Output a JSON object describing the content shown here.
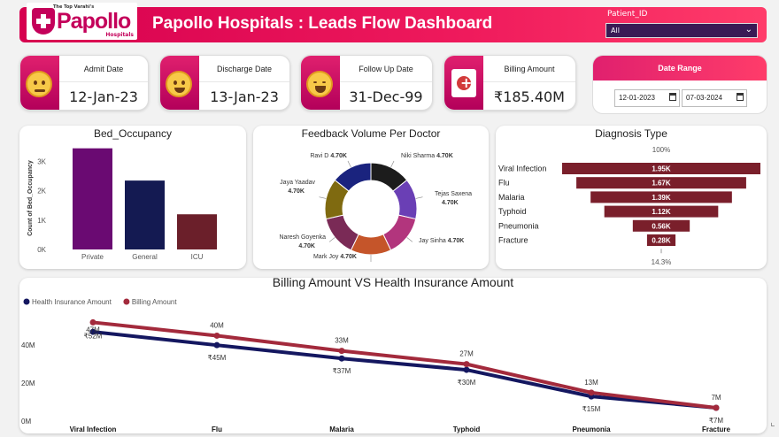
{
  "header": {
    "logo_top": "The Top Varahi's",
    "logo_name": "Papollo",
    "logo_sub": "Hospitals",
    "title": "Papollo Hospitals : Leads Flow Dashboard",
    "patient_id_label": "Patient_ID",
    "patient_id_value": "All"
  },
  "kpis": [
    {
      "label": "Admit Date",
      "value": "12-Jan-23",
      "icon": "thermometer-face-icon"
    },
    {
      "label": "Discharge Date",
      "value": "13-Jan-23",
      "icon": "grinning-face-icon"
    },
    {
      "label": "Follow Up Date",
      "value": "31-Dec-99",
      "icon": "laughing-face-icon"
    },
    {
      "label": "Billing Amount",
      "value": "₹185.40M",
      "icon": "medical-bill-icon"
    }
  ],
  "date_range": {
    "label": "Date Range",
    "start": "12-01-2023",
    "end": "07-03-2024"
  },
  "colors": {
    "accent": "#e0206e",
    "billing": "#a32a3c",
    "insurance": "#141760"
  },
  "chart_data": [
    {
      "type": "bar",
      "title": "Bed_Occupancy",
      "ylabel": "Count of Bed_Occupancy",
      "categories": [
        "Private",
        "General",
        "ICU"
      ],
      "values": [
        3450,
        2350,
        1200
      ],
      "colors": [
        "#6a0a72",
        "#141a52",
        "#6b1f2a"
      ],
      "ylim": [
        0,
        3500
      ],
      "yticks": [
        0,
        1000,
        2000,
        3000
      ],
      "ytick_labels": [
        "0K",
        "1K",
        "2K",
        "3K"
      ]
    },
    {
      "type": "pie",
      "title": "Feedback Volume Per Doctor",
      "donut": true,
      "labels": [
        "Niki Sharma",
        "Tejas Saxena",
        "Jay Sinha",
        "Mark Joy",
        "Naresh Goyenka",
        "Jaya Yaadav",
        "Ravi D"
      ],
      "values": [
        4700,
        4700,
        4700,
        4700,
        4700,
        4700,
        4700
      ],
      "value_labels": [
        "4.70K",
        "4.70K",
        "4.70K",
        "4.70K",
        "4.70K",
        "4.70K",
        "4.70K"
      ],
      "colors": [
        "#1c1c1c",
        "#6a3fb5",
        "#b2357d",
        "#c5552a",
        "#7a2a56",
        "#7f6a10",
        "#1a237e"
      ]
    },
    {
      "type": "bar",
      "title": "Diagnosis Type",
      "orientation": "funnel",
      "categories": [
        "Viral Infection",
        "Flu",
        "Malaria",
        "Typhoid",
        "Pneumonia",
        "Fracture"
      ],
      "values": [
        1950,
        1670,
        1390,
        1120,
        560,
        280
      ],
      "value_labels": [
        "1.95K",
        "1.67K",
        "1.39K",
        "1.12K",
        "0.56K",
        "0.28K"
      ],
      "top_percent": "100%",
      "bottom_percent": "14.3%",
      "color": "#7a1f2b"
    },
    {
      "type": "line",
      "title": "Billing Amount VS Health Insurance Amount",
      "legend": "top-left",
      "categories": [
        "Viral Infection",
        "Flu",
        "Malaria",
        "Typhoid",
        "Pneumonia",
        "Fracture"
      ],
      "series": [
        {
          "name": "Health Insurance Amount",
          "values": [
            47,
            40,
            33,
            27,
            13,
            7
          ],
          "labels": [
            "47M",
            "40M",
            "33M",
            "27M",
            "13M",
            "7M"
          ],
          "color": "#141760"
        },
        {
          "name": "Billing Amount",
          "values": [
            52,
            45,
            37,
            30,
            15,
            7
          ],
          "labels": [
            "₹52M",
            "₹45M",
            "₹37M",
            "₹30M",
            "₹15M",
            "₹7M"
          ],
          "color": "#a32a3c"
        }
      ],
      "ylim": [
        0,
        55
      ],
      "yticks": [
        0,
        20,
        40
      ],
      "ytick_labels": [
        "0M",
        "20M",
        "40M"
      ]
    }
  ]
}
